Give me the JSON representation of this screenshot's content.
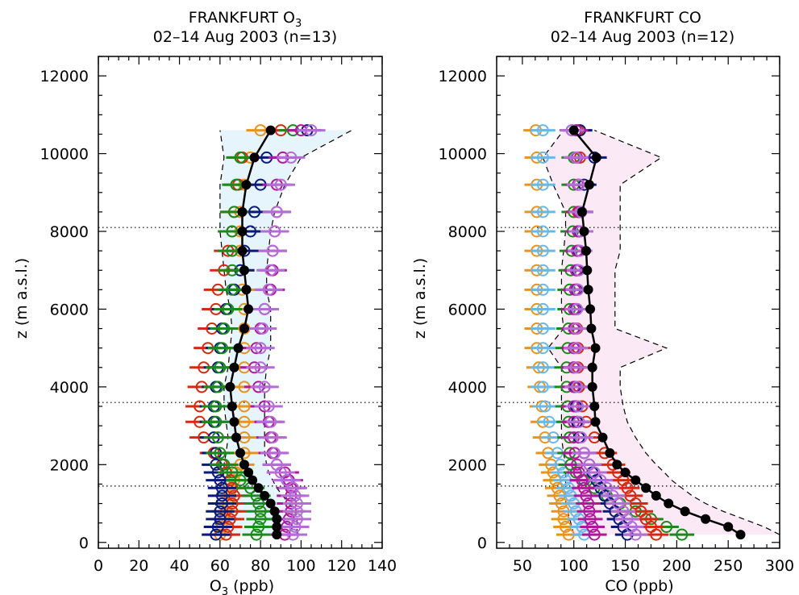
{
  "chart_data": [
    {
      "type": "scatter",
      "title": "FRANKFURT O3",
      "title_main": "FRANKFURT O",
      "title_sub": "3",
      "subtitle": "02–14 Aug 2003 (n=13)",
      "xlabel": "O3 (ppb)",
      "xlabel_main": "O",
      "xlabel_sub": "3",
      "xlabel_unit": " (ppb)",
      "ylabel": "z (m a.s.l.)",
      "xlim": [
        0,
        140
      ],
      "ylim": [
        -150,
        12500
      ],
      "xticks": [
        0,
        20,
        40,
        60,
        80,
        100,
        120,
        140
      ],
      "yticks": [
        0,
        2000,
        4000,
        6000,
        8000,
        10000,
        12000
      ],
      "reference_lines_y": [
        1450,
        3600,
        8100
      ],
      "mean_profile": {
        "z": [
          200,
          400,
          600,
          800,
          1000,
          1200,
          1400,
          1600,
          1800,
          2000,
          2300,
          2700,
          3100,
          3500,
          4000,
          4500,
          5000,
          5500,
          6000,
          6500,
          7000,
          7500,
          8000,
          8500,
          9200,
          9900,
          10600
        ],
        "value": [
          88,
          88,
          88,
          87,
          85,
          82,
          79,
          76,
          74,
          72,
          70,
          68,
          67,
          66,
          65,
          67,
          69,
          72,
          74,
          73,
          72,
          71,
          71,
          71,
          73,
          77,
          85
        ]
      },
      "range_lower": [
        58,
        58,
        58,
        58,
        58,
        59,
        60,
        61,
        62,
        62,
        63,
        64,
        63,
        62,
        62,
        64,
        65,
        66,
        65,
        63,
        62,
        61,
        60,
        60,
        60,
        62,
        60
      ],
      "range_upper": [
        98,
        98,
        98,
        97,
        94,
        91,
        88,
        86,
        84,
        83,
        82,
        82,
        82,
        82,
        82,
        83,
        85,
        85,
        85,
        83,
        83,
        84,
        85,
        87,
        92,
        100,
        125
      ],
      "flights": [
        {
          "name": "orange",
          "color": "#e8931e",
          "values": [
            60,
            61,
            62,
            63,
            64,
            65,
            66,
            67,
            68,
            70,
            72,
            72,
            72,
            72,
            72,
            72,
            72,
            72,
            72,
            71,
            70,
            70,
            70,
            70,
            72,
            75,
            80
          ]
        },
        {
          "name": "red",
          "color": "#d42a10",
          "values": [
            63,
            64,
            65,
            66,
            66,
            67,
            66,
            65,
            63,
            61,
            57,
            52,
            50,
            50,
            51,
            52,
            54,
            56,
            58,
            59,
            62,
            64,
            66,
            67,
            69,
            71,
            90
          ]
        },
        {
          "name": "navy",
          "color": "#0a1a7a",
          "values": [
            58,
            59,
            60,
            60,
            61,
            61,
            61,
            60,
            59,
            58,
            58,
            57,
            57,
            57,
            58,
            59,
            60,
            61,
            63,
            67,
            70,
            72,
            75,
            77,
            80,
            83,
            103
          ]
        },
        {
          "name": "green",
          "color": "#1a8a1a",
          "values": [
            78,
            79,
            80,
            80,
            79,
            78,
            75,
            70,
            66,
            62,
            60,
            59,
            58,
            58,
            59,
            60,
            61,
            62,
            64,
            66,
            66,
            66,
            66,
            67,
            68,
            70,
            96
          ]
        },
        {
          "name": "magenta",
          "color": "#b0189a",
          "values": [
            92,
            93,
            94,
            95,
            95,
            95,
            95,
            94,
            92,
            88,
            86,
            85,
            84,
            82,
            79,
            77,
            78,
            80,
            82,
            85,
            86,
            86,
            87,
            88,
            88,
            91,
            100
          ]
        },
        {
          "name": "violet",
          "color": "#b46cd6",
          "values": [
            96,
            97,
            98,
            98,
            98,
            97,
            96,
            93,
            90,
            88,
            87,
            86,
            85,
            84,
            82,
            80,
            80,
            81,
            82,
            84,
            85,
            86,
            87,
            88,
            90,
            95,
            105
          ]
        }
      ]
    },
    {
      "type": "scatter",
      "title": "FRANKFURT CO",
      "subtitle": "02–14 Aug 2003 (n=12)",
      "xlabel": "CO (ppb)",
      "ylabel": "z (m a.s.l.)",
      "xlim": [
        25,
        300
      ],
      "ylim": [
        -150,
        12500
      ],
      "xticks": [
        50,
        100,
        150,
        200,
        250,
        300
      ],
      "yticks": [
        0,
        2000,
        4000,
        6000,
        8000,
        10000,
        12000
      ],
      "reference_lines_y": [
        1450,
        3600,
        8100
      ],
      "mean_profile": {
        "z": [
          200,
          400,
          600,
          800,
          1000,
          1200,
          1400,
          1600,
          1800,
          2000,
          2300,
          2700,
          3100,
          3500,
          4000,
          4500,
          5000,
          5500,
          6000,
          6500,
          7000,
          7500,
          8000,
          8500,
          9200,
          9900,
          10600
        ],
        "value": [
          262,
          250,
          228,
          208,
          192,
          180,
          170,
          160,
          150,
          142,
          135,
          128,
          121,
          120,
          118,
          118,
          121,
          117,
          116,
          114,
          113,
          112,
          110,
          108,
          115,
          122,
          100
        ]
      },
      "range_lower": [
        100,
        98,
        96,
        94,
        92,
        92,
        92,
        92,
        92,
        92,
        90,
        88,
        88,
        88,
        88,
        88,
        75,
        90,
        88,
        88,
        88,
        90,
        92,
        92,
        80,
        70,
        90
      ],
      "range_upper": [
        300,
        285,
        265,
        245,
        228,
        215,
        205,
        195,
        188,
        180,
        170,
        160,
        152,
        148,
        145,
        145,
        190,
        140,
        140,
        140,
        140,
        145,
        145,
        145,
        145,
        185,
        120
      ],
      "flights": [
        {
          "name": "orange",
          "color": "#e8931e",
          "values": [
            95,
            92,
            90,
            90,
            88,
            86,
            84,
            82,
            80,
            78,
            75,
            72,
            70,
            69,
            67,
            66,
            64,
            64,
            64,
            64,
            64,
            64,
            64,
            64,
            64,
            64,
            63
          ]
        },
        {
          "name": "lightblue",
          "color": "#6ab8e6",
          "values": [
            110,
            108,
            105,
            102,
            100,
            97,
            95,
            92,
            90,
            87,
            84,
            80,
            76,
            72,
            70,
            70,
            70,
            70,
            70,
            70,
            70,
            70,
            70,
            70,
            70,
            70,
            70
          ]
        },
        {
          "name": "green",
          "color": "#1a8a1a",
          "values": [
            205,
            190,
            175,
            160,
            145,
            132,
            120,
            110,
            102,
            97,
            96,
            96,
            95,
            94,
            93,
            93,
            94,
            95,
            96,
            96,
            97,
            98,
            99,
            100,
            100,
            100,
            98
          ]
        },
        {
          "name": "red",
          "color": "#d42a10",
          "values": [
            180,
            175,
            170,
            165,
            160,
            155,
            152,
            148,
            143,
            138,
            130,
            120,
            112,
            108,
            105,
            104,
            104,
            103,
            103,
            103,
            103,
            104,
            104,
            104,
            105,
            106,
            104
          ]
        },
        {
          "name": "navy",
          "color": "#0a1a7a",
          "values": [
            152,
            148,
            144,
            140,
            135,
            130,
            126,
            122,
            118,
            115,
            110,
            105,
            103,
            102,
            101,
            100,
            100,
            101,
            102,
            103,
            104,
            105,
            106,
            107,
            110,
            120,
            106
          ]
        },
        {
          "name": "magenta",
          "color": "#b0189a",
          "values": [
            120,
            118,
            116,
            115,
            114,
            112,
            110,
            108,
            105,
            103,
            101,
            100,
            100,
            100,
            100,
            100,
            100,
            100,
            100,
            101,
            102,
            103,
            104,
            105,
            104,
            103,
            102
          ]
        },
        {
          "name": "violet",
          "color": "#b46cd6",
          "values": [
            160,
            156,
            152,
            148,
            143,
            138,
            132,
            126,
            120,
            115,
            110,
            107,
            105,
            104,
            103,
            102,
            102,
            102,
            103,
            104,
            105,
            106,
            107,
            107,
            105,
            102,
            98
          ]
        }
      ]
    }
  ]
}
